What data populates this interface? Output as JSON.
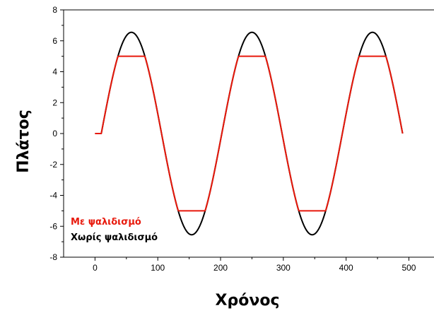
{
  "chart_data": {
    "type": "line",
    "xlabel": "Χρόνος",
    "ylabel": "Πλάτος",
    "xlim": [
      -50,
      540
    ],
    "ylim": [
      -8,
      8
    ],
    "x_ticks": [
      0,
      100,
      200,
      300,
      400,
      500
    ],
    "y_ticks": [
      -8,
      -6,
      -4,
      -2,
      0,
      2,
      4,
      6,
      8
    ],
    "grid": false,
    "legend_position": "bottom-left",
    "series": [
      {
        "name": "Χωρίς ψαλιδισμό",
        "color": "#000000",
        "clip": null,
        "signal": {
          "start": 0,
          "end": 490,
          "onset": 10,
          "amplitude": 6.55,
          "period": 192
        }
      },
      {
        "name": "Με ψαλιδισμό",
        "color": "#e8190c",
        "clip": 5,
        "signal": {
          "start": 0,
          "end": 490,
          "onset": 10,
          "amplitude": 6.55,
          "period": 192
        }
      }
    ]
  }
}
